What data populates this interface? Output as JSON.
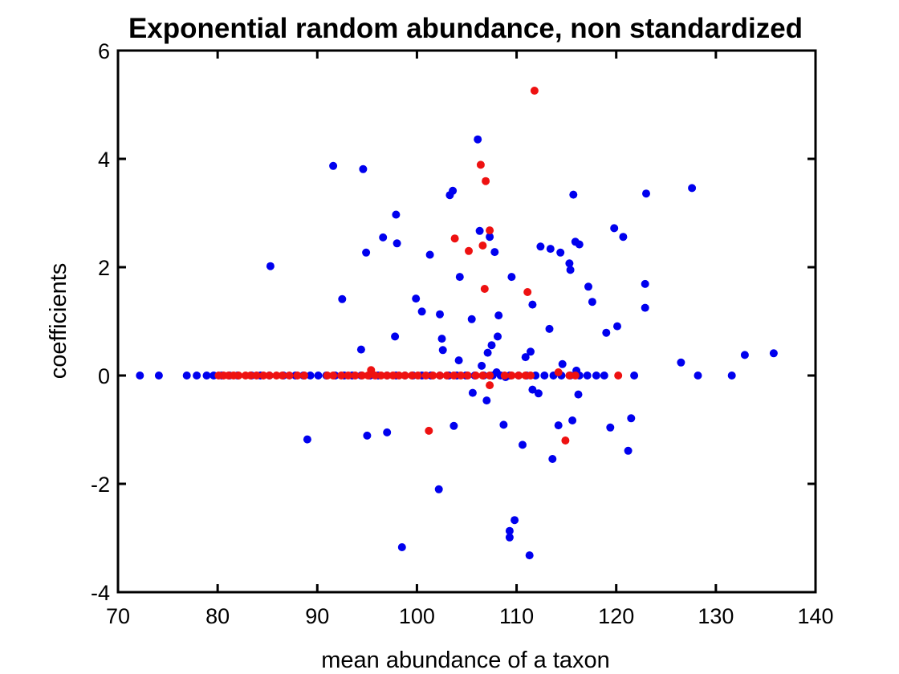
{
  "chart_data": {
    "type": "scatter",
    "title": "Exponential random abundance, non standardized",
    "xlabel": "mean abundance of a taxon",
    "ylabel": "coefficients",
    "xlim": [
      70,
      140
    ],
    "ylim": [
      -4,
      6
    ],
    "xticks": [
      70,
      80,
      90,
      100,
      110,
      120,
      130,
      140
    ],
    "yticks": [
      -4,
      -2,
      0,
      2,
      4,
      6
    ],
    "grid": false,
    "legend": "none",
    "series": [
      {
        "color": "#0000ee",
        "points": [
          [
            72.2,
            0
          ],
          [
            74.1,
            0
          ],
          [
            76.9,
            0
          ],
          [
            77.9,
            0
          ],
          [
            78.9,
            0
          ],
          [
            79.6,
            0
          ],
          [
            80.4,
            0
          ],
          [
            81.2,
            0
          ],
          [
            82.0,
            0
          ],
          [
            83.4,
            0
          ],
          [
            84.3,
            0
          ],
          [
            85.2,
            0
          ],
          [
            86.6,
            0
          ],
          [
            87.8,
            0
          ],
          [
            88.6,
            0
          ],
          [
            89.3,
            0
          ],
          [
            90.1,
            0
          ],
          [
            90.9,
            0
          ],
          [
            91.8,
            0
          ],
          [
            92.7,
            0
          ],
          [
            93.5,
            0
          ],
          [
            94.4,
            0
          ],
          [
            95.3,
            0
          ],
          [
            96.1,
            0
          ],
          [
            97.0,
            0
          ],
          [
            97.9,
            0
          ],
          [
            98.8,
            0
          ],
          [
            99.6,
            0
          ],
          [
            100.5,
            0
          ],
          [
            101.4,
            0
          ],
          [
            102.3,
            0
          ],
          [
            103.2,
            0
          ],
          [
            104.0,
            0
          ],
          [
            104.9,
            0
          ],
          [
            105.8,
            0
          ],
          [
            106.7,
            0
          ],
          [
            107.6,
            0
          ],
          [
            108.4,
            0
          ],
          [
            109.3,
            0
          ],
          [
            110.2,
            0
          ],
          [
            111.0,
            0
          ],
          [
            111.9,
            0
          ],
          [
            112.8,
            0
          ],
          [
            113.7,
            0
          ],
          [
            114.5,
            0
          ],
          [
            115.4,
            0
          ],
          [
            116.3,
            0
          ],
          [
            117.1,
            0
          ],
          [
            118.0,
            0
          ],
          [
            118.8,
            0
          ],
          [
            121.8,
            0
          ],
          [
            128.2,
            0
          ],
          [
            131.6,
            0
          ],
          [
            85.3,
            2.02
          ],
          [
            89.0,
            -1.18
          ],
          [
            91.6,
            3.87
          ],
          [
            92.5,
            1.41
          ],
          [
            94.4,
            0.48
          ],
          [
            94.6,
            3.81
          ],
          [
            94.9,
            2.27
          ],
          [
            95.0,
            -1.11
          ],
          [
            96.6,
            2.55
          ],
          [
            97.0,
            -1.05
          ],
          [
            97.8,
            0.72
          ],
          [
            97.9,
            2.97
          ],
          [
            98.0,
            2.44
          ],
          [
            98.5,
            -3.17
          ],
          [
            99.9,
            1.42
          ],
          [
            100.5,
            1.18
          ],
          [
            101.3,
            2.23
          ],
          [
            102.2,
            -2.1
          ],
          [
            102.3,
            1.13
          ],
          [
            102.5,
            0.68
          ],
          [
            102.6,
            0.47
          ],
          [
            103.3,
            3.33
          ],
          [
            103.6,
            3.41
          ],
          [
            103.7,
            -0.93
          ],
          [
            104.2,
            0.28
          ],
          [
            104.3,
            1.82
          ],
          [
            105.5,
            1.04
          ],
          [
            105.6,
            -0.32
          ],
          [
            106.1,
            4.36
          ],
          [
            106.3,
            2.67
          ],
          [
            106.5,
            0.18
          ],
          [
            107.0,
            -0.46
          ],
          [
            107.1,
            0.42
          ],
          [
            107.3,
            2.56
          ],
          [
            107.5,
            0.56
          ],
          [
            107.8,
            2.28
          ],
          [
            108.0,
            0.06
          ],
          [
            108.1,
            0.72
          ],
          [
            108.2,
            1.11
          ],
          [
            108.7,
            -0.91
          ],
          [
            108.9,
            -0.03
          ],
          [
            109.3,
            -2.87
          ],
          [
            109.3,
            -2.99
          ],
          [
            109.5,
            1.82
          ],
          [
            109.8,
            -2.67
          ],
          [
            110.6,
            -1.28
          ],
          [
            110.9,
            0.34
          ],
          [
            111.3,
            -3.32
          ],
          [
            111.4,
            0.44
          ],
          [
            111.6,
            1.31
          ],
          [
            111.6,
            -0.26
          ],
          [
            112.2,
            -0.33
          ],
          [
            112.4,
            2.38
          ],
          [
            113.3,
            0.86
          ],
          [
            113.4,
            2.34
          ],
          [
            113.6,
            -1.54
          ],
          [
            114.2,
            -0.92
          ],
          [
            114.4,
            2.27
          ],
          [
            114.6,
            0.21
          ],
          [
            115.3,
            2.07
          ],
          [
            115.4,
            1.95
          ],
          [
            115.6,
            -0.83
          ],
          [
            115.7,
            3.34
          ],
          [
            115.9,
            2.47
          ],
          [
            116.0,
            0.09
          ],
          [
            116.2,
            -0.35
          ],
          [
            116.3,
            2.42
          ],
          [
            117.2,
            1.64
          ],
          [
            117.6,
            1.36
          ],
          [
            119.0,
            0.79
          ],
          [
            119.4,
            -0.96
          ],
          [
            119.8,
            2.72
          ],
          [
            120.1,
            0.91
          ],
          [
            120.7,
            2.56
          ],
          [
            121.2,
            -1.39
          ],
          [
            121.5,
            -0.79
          ],
          [
            122.9,
            1.69
          ],
          [
            122.9,
            1.25
          ],
          [
            123.0,
            3.36
          ],
          [
            126.5,
            0.24
          ],
          [
            127.6,
            3.46
          ],
          [
            132.9,
            0.38
          ],
          [
            135.8,
            0.41
          ]
        ]
      },
      {
        "color": "#ee1111",
        "points": [
          [
            80.1,
            0
          ],
          [
            80.6,
            0
          ],
          [
            81.1,
            0
          ],
          [
            81.6,
            0
          ],
          [
            82.1,
            0
          ],
          [
            82.8,
            0
          ],
          [
            83.3,
            0
          ],
          [
            83.9,
            0
          ],
          [
            84.6,
            0
          ],
          [
            85.2,
            0
          ],
          [
            85.9,
            0
          ],
          [
            86.5,
            0
          ],
          [
            87.2,
            0
          ],
          [
            88.0,
            0
          ],
          [
            88.7,
            0
          ],
          [
            91.0,
            0
          ],
          [
            91.6,
            0
          ],
          [
            92.4,
            0
          ],
          [
            93.1,
            0
          ],
          [
            93.8,
            0
          ],
          [
            94.5,
            0
          ],
          [
            95.1,
            0
          ],
          [
            95.8,
            0
          ],
          [
            96.4,
            0
          ],
          [
            97.0,
            0
          ],
          [
            97.6,
            0
          ],
          [
            98.2,
            0
          ],
          [
            98.8,
            0
          ],
          [
            99.5,
            0
          ],
          [
            100.1,
            0
          ],
          [
            100.9,
            0
          ],
          [
            101.6,
            0
          ],
          [
            102.3,
            0
          ],
          [
            103.0,
            0
          ],
          [
            103.7,
            0
          ],
          [
            104.4,
            0
          ],
          [
            105.1,
            0
          ],
          [
            105.9,
            0
          ],
          [
            106.6,
            0
          ],
          [
            107.3,
            0
          ],
          [
            109.5,
            0
          ],
          [
            110.2,
            0
          ],
          [
            110.9,
            0
          ],
          [
            111.4,
            0
          ],
          [
            115.3,
            0
          ],
          [
            115.9,
            0
          ],
          [
            120.2,
            0
          ],
          [
            95.4,
            0.1
          ],
          [
            101.2,
            -1.02
          ],
          [
            103.8,
            2.53
          ],
          [
            105.2,
            2.3
          ],
          [
            106.4,
            3.89
          ],
          [
            106.6,
            2.4
          ],
          [
            106.8,
            1.6
          ],
          [
            106.9,
            3.59
          ],
          [
            107.3,
            2.68
          ],
          [
            107.3,
            -0.18
          ],
          [
            108.8,
            0.0
          ],
          [
            111.1,
            1.54
          ],
          [
            111.8,
            5.26
          ],
          [
            114.2,
            0.06
          ],
          [
            114.9,
            -1.2
          ]
        ]
      }
    ]
  }
}
